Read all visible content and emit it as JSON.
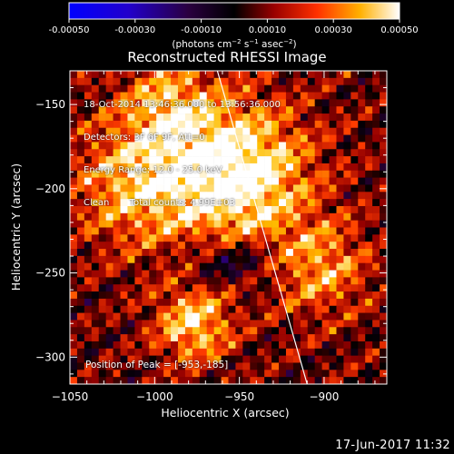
{
  "colorbar": {
    "ticks": [
      "-0.00050",
      "-0.00030",
      "-0.00010",
      "0.00010",
      "0.00030",
      "0.00050"
    ],
    "tick_values": [
      -0.0005,
      -0.0003,
      -0.0001,
      0.0001,
      0.0003,
      0.0005
    ],
    "range": [
      -0.0005,
      0.0005
    ],
    "units_html": "(photons cm<tspan dy='-4' font-size='7'>−2</tspan><tspan dy='4'> s</tspan><tspan dy='-4' font-size='7'>−1</tspan><tspan dy='4'> asec</tspan><tspan dy='-4' font-size='7'>−2</tspan><tspan dy='4'>)</tspan>",
    "colors": [
      "#0000ff",
      "#3300cc",
      "#200030",
      "#000000",
      "#a00000",
      "#ff5000",
      "#ffd000",
      "#ffffff"
    ]
  },
  "chart_data": {
    "type": "heatmap",
    "title": "Reconstructed RHESSI Image",
    "xlabel": "Heliocentric X (arcsec)",
    "ylabel": "Heliocentric Y (arcsec)",
    "xlim": [
      -1050,
      -863
    ],
    "ylim": [
      -316,
      -130
    ],
    "xticks": [
      -1050,
      -1000,
      -950,
      -900
    ],
    "yticks": [
      -150,
      -200,
      -250,
      -300
    ],
    "xtick_labels": [
      "−1050",
      "−1000",
      "−950",
      "−900"
    ],
    "ytick_labels": [
      "−150",
      "−200",
      "−250",
      "−300"
    ],
    "peak": [
      -953,
      -185
    ],
    "limb_line": [
      [
        -963,
        -130
      ],
      [
        -910,
        -316
      ]
    ]
  },
  "annotations": [
    "18-Oct-2014 13:46:36.000 to 13:56:36.000",
    "Detectors: 3F 6F 9F, Att=0",
    "Energy Range: 12.0 - 25.0 keV",
    "Clean       Total counts: 4.99E+03"
  ],
  "peak_label": "Position of Peak = [-953,-185]",
  "footer": "17-Jun-2017 11:32"
}
